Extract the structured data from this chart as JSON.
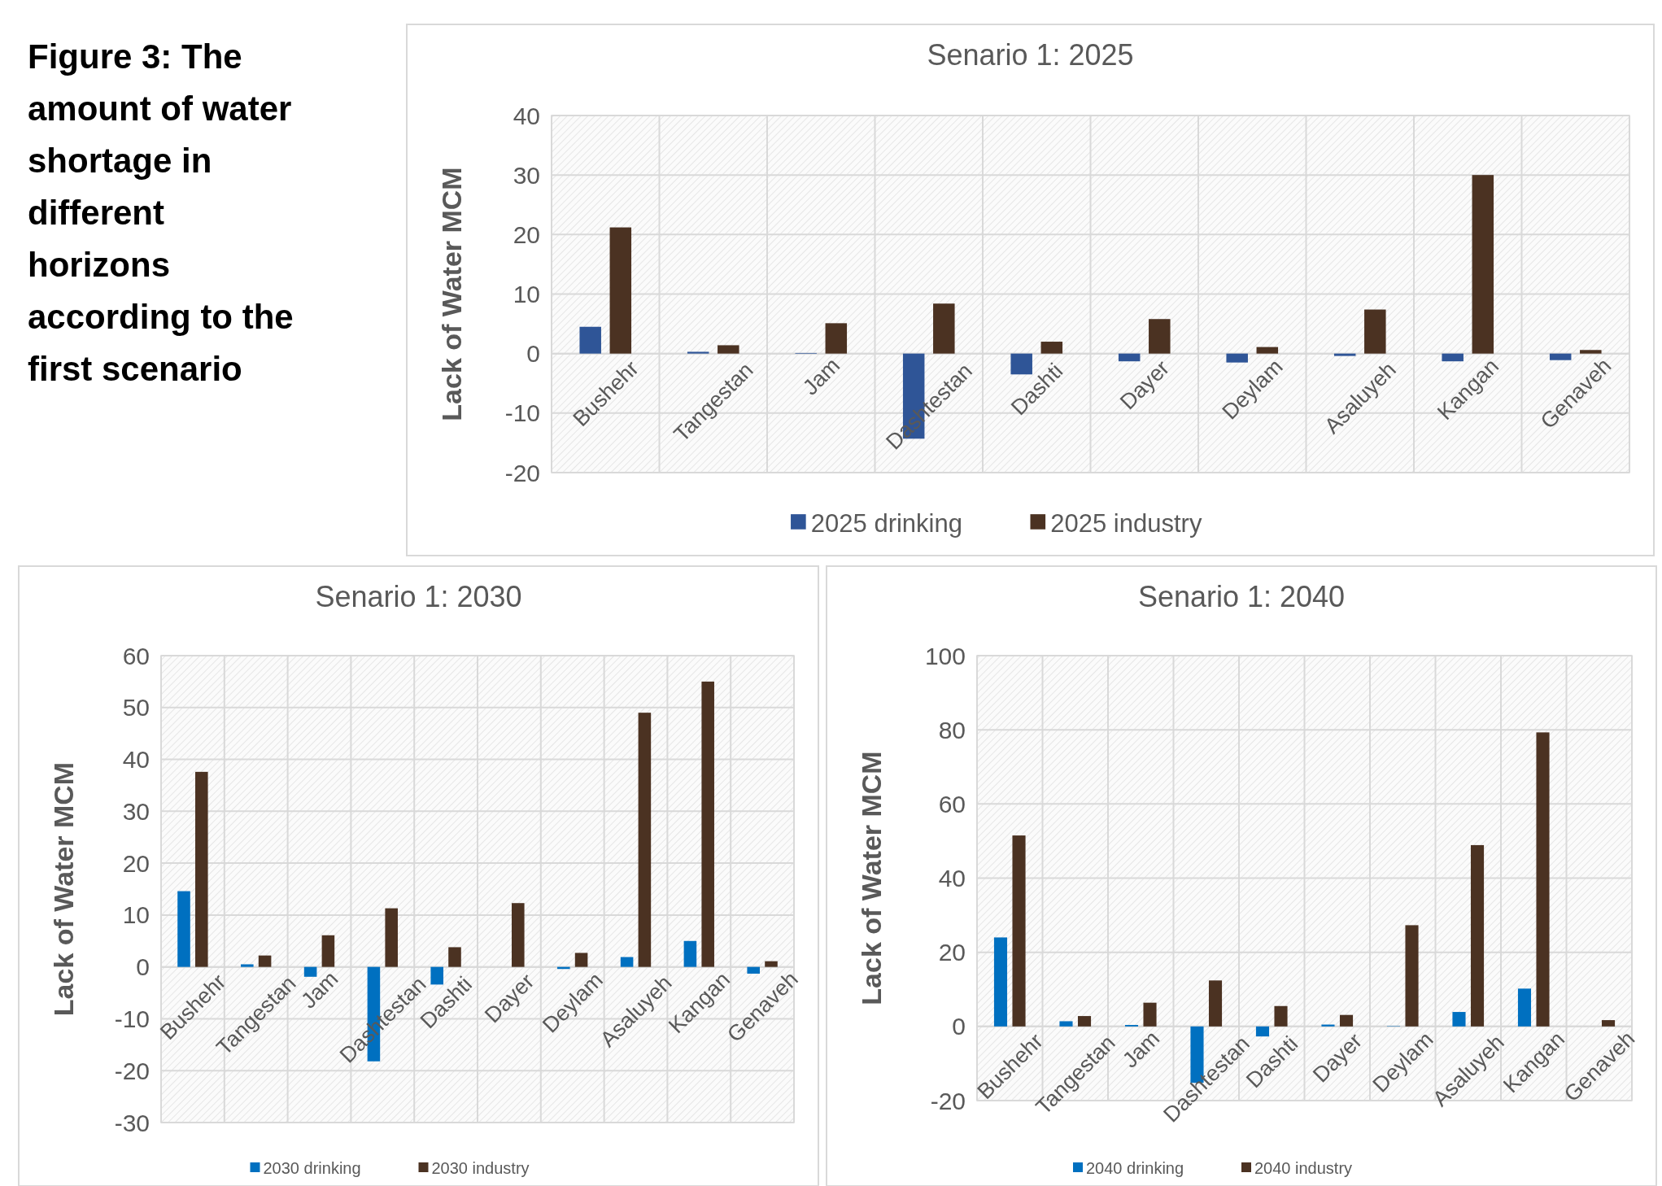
{
  "chart_data": [
    {
      "type": "other",
      "title": "Figure 3: The amount of water shortage in different horizons according to the first scenario"
    },
    {
      "type": "bar",
      "title": "Senario 1: 2025",
      "ylabel": "Lack of Water MCM",
      "categories": [
        "Bushehr",
        "Tangestan",
        "Jam",
        "Dashtestan",
        "Dashti",
        "Dayer",
        "Deylam",
        "Asaluyeh",
        "Kangan",
        "Genaveh"
      ],
      "series": [
        {
          "name": "2025 drinking",
          "color": "#2f5597",
          "values": [
            4.5,
            0.3,
            0.1,
            -14.3,
            -3.5,
            -1.3,
            -1.5,
            -0.4,
            -1.3,
            -1.1
          ]
        },
        {
          "name": "2025 industry",
          "color": "#4b3222",
          "values": [
            21.2,
            1.4,
            5.1,
            8.4,
            2.0,
            5.8,
            1.1,
            7.4,
            30,
            0.6
          ]
        }
      ],
      "ylim": [
        -20,
        40
      ],
      "yticks": [
        -20,
        -10,
        0,
        10,
        20,
        30,
        40
      ],
      "grid": true,
      "legend": "bottom"
    },
    {
      "type": "bar",
      "title": "Senario 1: 2030",
      "ylabel": "Lack of Water MCM",
      "categories": [
        "Bushehr",
        "Tangestan",
        "Jam",
        "Dashtestan",
        "Dashti",
        "Dayer",
        "Deylam",
        "Asaluyeh",
        "Kangan",
        "Genaveh"
      ],
      "series": [
        {
          "name": "2030 drinking",
          "color": "#0070c0",
          "values": [
            14.6,
            0.5,
            -1.9,
            -18.2,
            -3.4,
            null,
            -0.4,
            1.9,
            5.0,
            -1.3
          ]
        },
        {
          "name": "2030 industry",
          "color": "#4b3222",
          "values": [
            37.6,
            2.2,
            6.1,
            11.3,
            3.8,
            12.3,
            2.7,
            49.0,
            55.0,
            1.1
          ]
        }
      ],
      "ylim": [
        -30,
        60
      ],
      "yticks": [
        -30,
        -20,
        -10,
        0,
        10,
        20,
        30,
        40,
        50,
        60
      ],
      "grid": true,
      "legend": "bottom"
    },
    {
      "type": "bar",
      "title": "Senario 1: 2040",
      "ylabel": "Lack of Water MCM",
      "categories": [
        "Bushehr",
        "Tangestan",
        "Jam",
        "Dashtestan",
        "Dashti",
        "Dayer",
        "Deylam",
        "Asaluyeh",
        "Kangan",
        "Genaveh"
      ],
      "series": [
        {
          "name": "2040 drinking",
          "color": "#0070c0",
          "values": [
            24.0,
            1.4,
            0.4,
            -15.2,
            -2.7,
            0.5,
            0.1,
            3.9,
            10.2,
            null
          ]
        },
        {
          "name": "2040 industry",
          "color": "#4b3222",
          "values": [
            51.5,
            2.8,
            6.4,
            12.4,
            5.5,
            3.1,
            27.3,
            48.9,
            79.3,
            1.7
          ]
        }
      ],
      "ylim": [
        -20,
        100
      ],
      "yticks": [
        -20,
        0,
        20,
        40,
        60,
        80,
        100
      ],
      "grid": true,
      "legend": "bottom"
    }
  ]
}
